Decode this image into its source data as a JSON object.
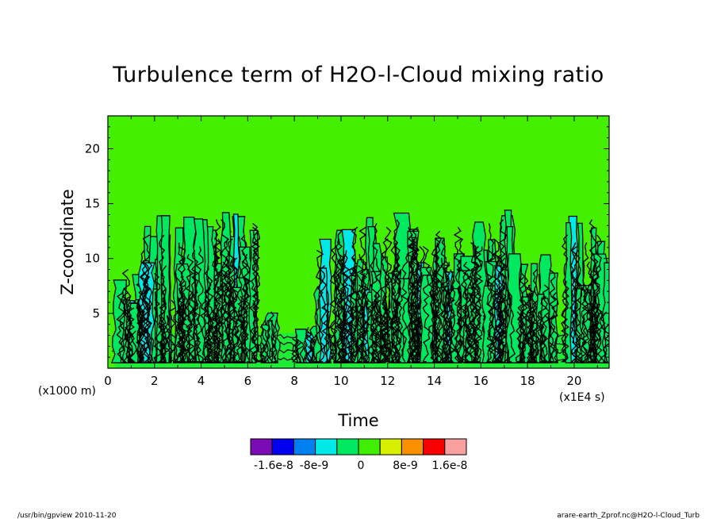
{
  "chart_data": {
    "type": "heatmap",
    "title": "Turbulence term of H2O-l-Cloud mixing ratio",
    "xlabel": "Time",
    "ylabel": "Z-coordinate",
    "x_unit": "(x1E4 s)",
    "y_unit": "(x1000 m)",
    "xlim": [
      0,
      21.5
    ],
    "ylim": [
      0,
      23
    ],
    "x_ticks": [
      0,
      2,
      4,
      6,
      8,
      10,
      12,
      14,
      16,
      18,
      20
    ],
    "y_ticks": [
      5,
      10,
      15,
      20
    ],
    "grid": false,
    "background_level_color": "#44f000",
    "colorbar": {
      "colors": [
        "#7a0bb5",
        "#0000ee",
        "#0080f0",
        "#00e8e8",
        "#00e860",
        "#40ee00",
        "#d8f000",
        "#f89000",
        "#f80000",
        "#f8a0a0"
      ],
      "labels": [
        "-1.6e-8",
        "-8e-9",
        "0",
        "8e-9",
        "1.6e-8"
      ]
    },
    "cloud_clusters": [
      {
        "t_start": 0.3,
        "t_end": 2.0,
        "z_top": 9.5
      },
      {
        "t_start": 1.4,
        "t_end": 3.5,
        "z_top": 14.0
      },
      {
        "t_start": 3.5,
        "t_end": 5.2,
        "z_top": 13.8
      },
      {
        "t_start": 4.8,
        "t_end": 6.4,
        "z_top": 14.5
      },
      {
        "t_start": 6.6,
        "t_end": 7.3,
        "z_top": 6.0
      },
      {
        "t_start": 8.0,
        "t_end": 10.0,
        "z_top": 4.0
      },
      {
        "t_start": 9.0,
        "t_end": 11.0,
        "z_top": 13.3
      },
      {
        "t_start": 10.8,
        "t_end": 12.4,
        "z_top": 14.0
      },
      {
        "t_start": 12.2,
        "t_end": 13.8,
        "z_top": 14.5
      },
      {
        "t_start": 13.6,
        "t_end": 15.2,
        "z_top": 13.2
      },
      {
        "t_start": 15.0,
        "t_end": 16.5,
        "z_top": 14.2
      },
      {
        "t_start": 16.3,
        "t_end": 17.5,
        "z_top": 14.5
      },
      {
        "t_start": 17.3,
        "t_end": 19.2,
        "z_top": 10.5
      },
      {
        "t_start": 19.6,
        "t_end": 21.5,
        "z_top": 14.0
      }
    ],
    "contour_color": "#000000"
  },
  "footer": {
    "left": "/usr/bin/gpview   2010-11-20",
    "right": "arare-earth_Zprof.nc@H2O-l-Cloud_Turb"
  }
}
